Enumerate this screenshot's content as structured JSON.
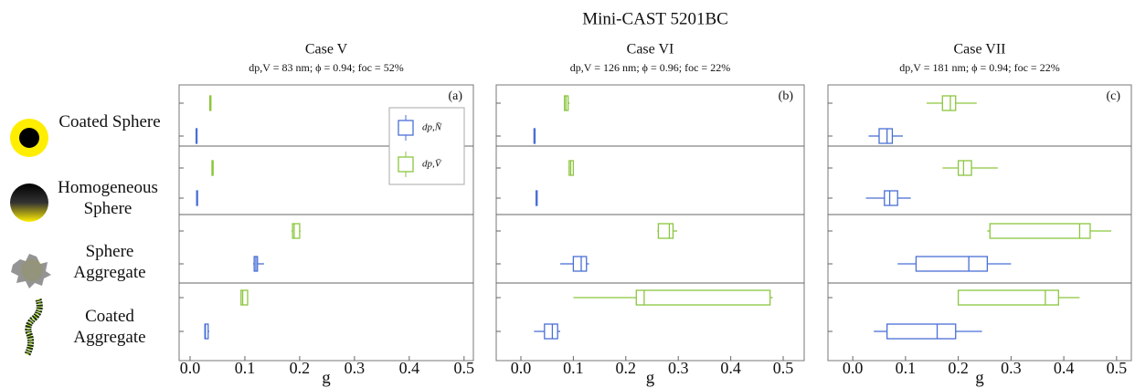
{
  "title": "Mini-CAST 5201BC",
  "categories": [
    "Coated Sphere",
    "Homogeneous Sphere",
    "Sphere Aggregate",
    "Coated Aggregate"
  ],
  "chart_data": [
    {
      "type": "box",
      "title": "Case V",
      "subtitle": "dp,V = 83 nm; ϕ = 0.94; foc = 52%",
      "panel_label": "(a)",
      "xlabel": "g",
      "xlim": [
        -0.02,
        0.517
      ],
      "xticks": [
        {
          "value": 0,
          "label": "0.0"
        },
        0.1,
        0.2,
        0.3,
        0.4,
        0.5
      ],
      "series": [
        {
          "name": "dp,N̄",
          "color": "#4a6fd6",
          "values": [
            {
              "whislo": 0.011,
              "q1": 0.011,
              "med": 0.012,
              "q3": 0.012,
              "whishi": 0.013
            },
            {
              "whislo": 0.012,
              "q1": 0.012,
              "med": 0.013,
              "q3": 0.013,
              "whishi": 0.014
            },
            {
              "whislo": 0.115,
              "q1": 0.117,
              "med": 0.12,
              "q3": 0.123,
              "whishi": 0.135
            },
            {
              "whislo": 0.026,
              "q1": 0.027,
              "med": 0.028,
              "q3": 0.033,
              "whishi": 0.035
            }
          ]
        },
        {
          "name": "dp,V̄",
          "color": "#8cc63f",
          "values": [
            {
              "whislo": 0.035,
              "q1": 0.036,
              "med": 0.037,
              "q3": 0.038,
              "whishi": 0.039
            },
            {
              "whislo": 0.039,
              "q1": 0.04,
              "med": 0.041,
              "q3": 0.042,
              "whishi": 0.043
            },
            {
              "whislo": 0.185,
              "q1": 0.187,
              "med": 0.19,
              "q3": 0.2,
              "whishi": 0.202
            },
            {
              "whislo": 0.092,
              "q1": 0.093,
              "med": 0.096,
              "q3": 0.105,
              "whishi": 0.106
            }
          ]
        }
      ]
    },
    {
      "type": "box",
      "title": "Case VI",
      "subtitle": "dp,V = 126 nm; ϕ = 0.96; foc = 22%",
      "panel_label": "(b)",
      "xlabel": "g",
      "xlim": [
        -0.047,
        0.54
      ],
      "xticks": [
        {
          "value": 0,
          "label": "0.0"
        },
        0.1,
        0.2,
        0.3,
        0.4,
        0.5
      ],
      "series": [
        {
          "color": "#4a6fd6",
          "values": [
            {
              "whislo": 0.025,
              "q1": 0.025,
              "med": 0.026,
              "q3": 0.027,
              "whishi": 0.027
            },
            {
              "whislo": 0.029,
              "q1": 0.029,
              "med": 0.03,
              "q3": 0.031,
              "whishi": 0.031
            },
            {
              "whislo": 0.075,
              "q1": 0.1,
              "med": 0.115,
              "q3": 0.125,
              "whishi": 0.13
            },
            {
              "whislo": 0.025,
              "q1": 0.045,
              "med": 0.06,
              "q3": 0.07,
              "whishi": 0.075
            }
          ]
        },
        {
          "color": "#8cc63f",
          "values": [
            {
              "whislo": 0.082,
              "q1": 0.083,
              "med": 0.086,
              "q3": 0.09,
              "whishi": 0.093
            },
            {
              "whislo": 0.091,
              "q1": 0.092,
              "med": 0.095,
              "q3": 0.1,
              "whishi": 0.101
            },
            {
              "whislo": 0.26,
              "q1": 0.262,
              "med": 0.283,
              "q3": 0.29,
              "whishi": 0.298
            },
            {
              "whislo": 0.1,
              "q1": 0.22,
              "med": 0.235,
              "q3": 0.475,
              "whishi": 0.48
            }
          ]
        }
      ]
    },
    {
      "type": "box",
      "title": "Case VII",
      "subtitle": "dp,V = 181 nm; ϕ = 0.94; foc = 22%",
      "panel_label": "(c)",
      "xlabel": "g",
      "xlim": [
        -0.047,
        0.528
      ],
      "xticks": [
        {
          "value": 0,
          "label": "0.0"
        },
        0.1,
        0.2,
        0.3,
        0.4,
        0.5
      ],
      "series": [
        {
          "color": "#4a6fd6",
          "values": [
            {
              "whislo": 0.03,
              "q1": 0.05,
              "med": 0.065,
              "q3": 0.075,
              "whishi": 0.095
            },
            {
              "whislo": 0.025,
              "q1": 0.06,
              "med": 0.07,
              "q3": 0.085,
              "whishi": 0.11
            },
            {
              "whislo": 0.085,
              "q1": 0.12,
              "med": 0.22,
              "q3": 0.255,
              "whishi": 0.3
            },
            {
              "whislo": 0.04,
              "q1": 0.065,
              "med": 0.16,
              "q3": 0.195,
              "whishi": 0.245
            }
          ]
        },
        {
          "color": "#8cc63f",
          "values": [
            {
              "whislo": 0.14,
              "q1": 0.17,
              "med": 0.185,
              "q3": 0.195,
              "whishi": 0.235
            },
            {
              "whislo": 0.17,
              "q1": 0.2,
              "med": 0.21,
              "q3": 0.225,
              "whishi": 0.275
            },
            {
              "whislo": 0.255,
              "q1": 0.26,
              "med": 0.43,
              "q3": 0.45,
              "whishi": 0.49
            },
            {
              "whislo": 0.2,
              "q1": 0.2,
              "med": 0.365,
              "q3": 0.39,
              "whishi": 0.43
            }
          ]
        }
      ]
    }
  ]
}
